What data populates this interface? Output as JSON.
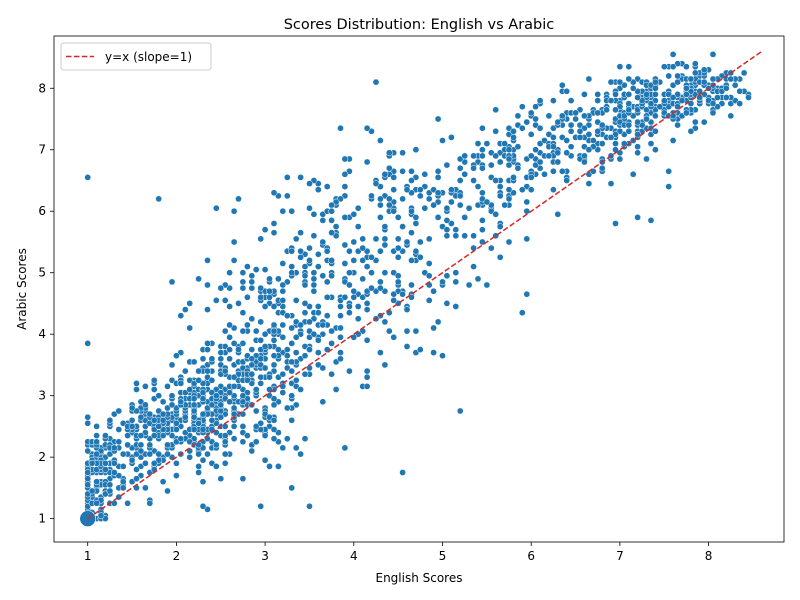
{
  "chart_data": {
    "type": "scatter",
    "title": "Scores Distribution: English vs Arabic",
    "xlabel": "English Scores",
    "ylabel": "Arabic Scores",
    "xlim": [
      0.62,
      8.85
    ],
    "ylim": [
      0.62,
      8.85
    ],
    "xticks": [
      1,
      2,
      3,
      4,
      5,
      6,
      7,
      8
    ],
    "yticks": [
      1,
      2,
      3,
      4,
      5,
      6,
      7,
      8
    ],
    "grid": false,
    "legend": {
      "placement": "top-left",
      "entries": [
        "y=x (slope=1)"
      ]
    },
    "colors": {
      "points": "#1f77b4",
      "point_edge": "#ffffff",
      "reference_line": "#d62728"
    },
    "reference_line": {
      "name": "y=x (slope=1)",
      "style": "dashed",
      "x": [
        1,
        8.6
      ],
      "y": [
        1,
        8.6
      ]
    },
    "large_marker": {
      "x": 1.0,
      "y": 1.0
    },
    "clusters": [
      {
        "cx": 1.1,
        "cy": 1.6,
        "sx": 0.12,
        "sy": 0.45,
        "n": 130
      },
      {
        "cx": 1.5,
        "cy": 2.1,
        "sx": 0.28,
        "sy": 0.45,
        "n": 130
      },
      {
        "cx": 2.0,
        "cy": 2.6,
        "sx": 0.3,
        "sy": 0.35,
        "n": 160
      },
      {
        "cx": 2.5,
        "cy": 2.9,
        "sx": 0.28,
        "sy": 0.45,
        "n": 220
      },
      {
        "cx": 3.0,
        "cy": 3.6,
        "sx": 0.35,
        "sy": 0.8,
        "n": 220
      },
      {
        "cx": 3.6,
        "cy": 5.0,
        "sx": 0.4,
        "sy": 0.9,
        "n": 150
      },
      {
        "cx": 4.4,
        "cy": 5.3,
        "sx": 0.45,
        "sy": 1.0,
        "n": 140
      },
      {
        "cx": 5.2,
        "cy": 6.2,
        "sx": 0.45,
        "sy": 0.6,
        "n": 120
      },
      {
        "cx": 6.0,
        "cy": 6.9,
        "sx": 0.4,
        "sy": 0.35,
        "n": 110
      },
      {
        "cx": 6.8,
        "cy": 7.4,
        "sx": 0.35,
        "sy": 0.35,
        "n": 140
      },
      {
        "cx": 7.4,
        "cy": 7.75,
        "sx": 0.3,
        "sy": 0.25,
        "n": 150
      },
      {
        "cx": 7.9,
        "cy": 8.05,
        "sx": 0.25,
        "sy": 0.2,
        "n": 110
      }
    ],
    "outliers": [
      {
        "x": 1.0,
        "y": 6.55
      },
      {
        "x": 1.0,
        "y": 3.85
      },
      {
        "x": 1.8,
        "y": 6.2
      },
      {
        "x": 2.45,
        "y": 6.05
      },
      {
        "x": 2.95,
        "y": 1.2
      },
      {
        "x": 3.9,
        "y": 2.15
      },
      {
        "x": 4.55,
        "y": 1.75
      },
      {
        "x": 5.2,
        "y": 2.75
      },
      {
        "x": 5.9,
        "y": 4.35
      },
      {
        "x": 5.95,
        "y": 4.65
      },
      {
        "x": 6.95,
        "y": 5.8
      },
      {
        "x": 7.2,
        "y": 5.9
      },
      {
        "x": 7.35,
        "y": 5.85
      },
      {
        "x": 7.55,
        "y": 6.65
      },
      {
        "x": 5.0,
        "y": 3.65
      },
      {
        "x": 2.3,
        "y": 1.2
      },
      {
        "x": 3.05,
        "y": 1.85
      },
      {
        "x": 3.15,
        "y": 1.85
      },
      {
        "x": 2.05,
        "y": 4.3
      },
      {
        "x": 1.95,
        "y": 4.85
      }
    ]
  }
}
